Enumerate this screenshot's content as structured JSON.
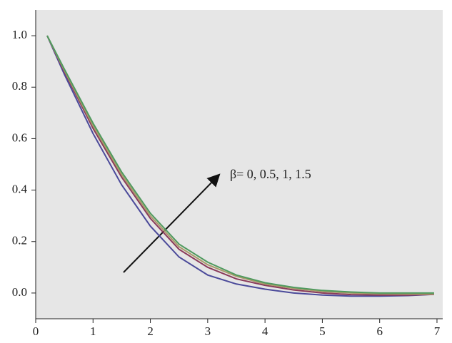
{
  "chart_data": {
    "type": "line",
    "annotation": "β= 0, 0.5, 1, 1.5",
    "x": [
      0.2,
      0.5,
      1,
      1.5,
      2,
      2.5,
      3,
      3.5,
      4,
      4.5,
      5,
      5.5,
      6,
      6.5,
      6.95
    ],
    "series": [
      {
        "color": "#4b4a9a",
        "values": [
          1.0,
          0.85,
          0.62,
          0.42,
          0.26,
          0.14,
          0.07,
          0.035,
          0.015,
          0.0,
          -0.008,
          -0.012,
          -0.012,
          -0.01,
          -0.005
        ]
      },
      {
        "color": "#8a3a5a",
        "values": [
          1.0,
          0.86,
          0.64,
          0.45,
          0.29,
          0.17,
          0.1,
          0.055,
          0.03,
          0.012,
          0.0,
          -0.006,
          -0.008,
          -0.008,
          -0.005
        ]
      },
      {
        "color": "#a89a6a",
        "values": [
          1.0,
          0.865,
          0.65,
          0.46,
          0.3,
          0.18,
          0.11,
          0.065,
          0.035,
          0.018,
          0.006,
          0.0,
          -0.003,
          -0.004,
          -0.004
        ]
      },
      {
        "color": "#4f9a5e",
        "values": [
          1.0,
          0.87,
          0.66,
          0.47,
          0.31,
          0.19,
          0.12,
          0.07,
          0.04,
          0.022,
          0.01,
          0.004,
          0.0,
          0.0,
          0.0
        ]
      }
    ],
    "xlim": [
      0,
      7.1
    ],
    "xticks": [
      0,
      1,
      2,
      3,
      4,
      5,
      6,
      7
    ],
    "ylim": [
      -0.1,
      1.1
    ],
    "yticks": [
      {
        "value": 0,
        "label": "0.0"
      },
      {
        "value": 0.2,
        "label": "0.2"
      },
      {
        "value": 0.4,
        "label": "0.4"
      },
      {
        "value": 0.6,
        "label": "0.6"
      },
      {
        "value": 0.8,
        "label": "0.8"
      },
      {
        "value": 1.0,
        "label": "1.0"
      }
    ]
  }
}
